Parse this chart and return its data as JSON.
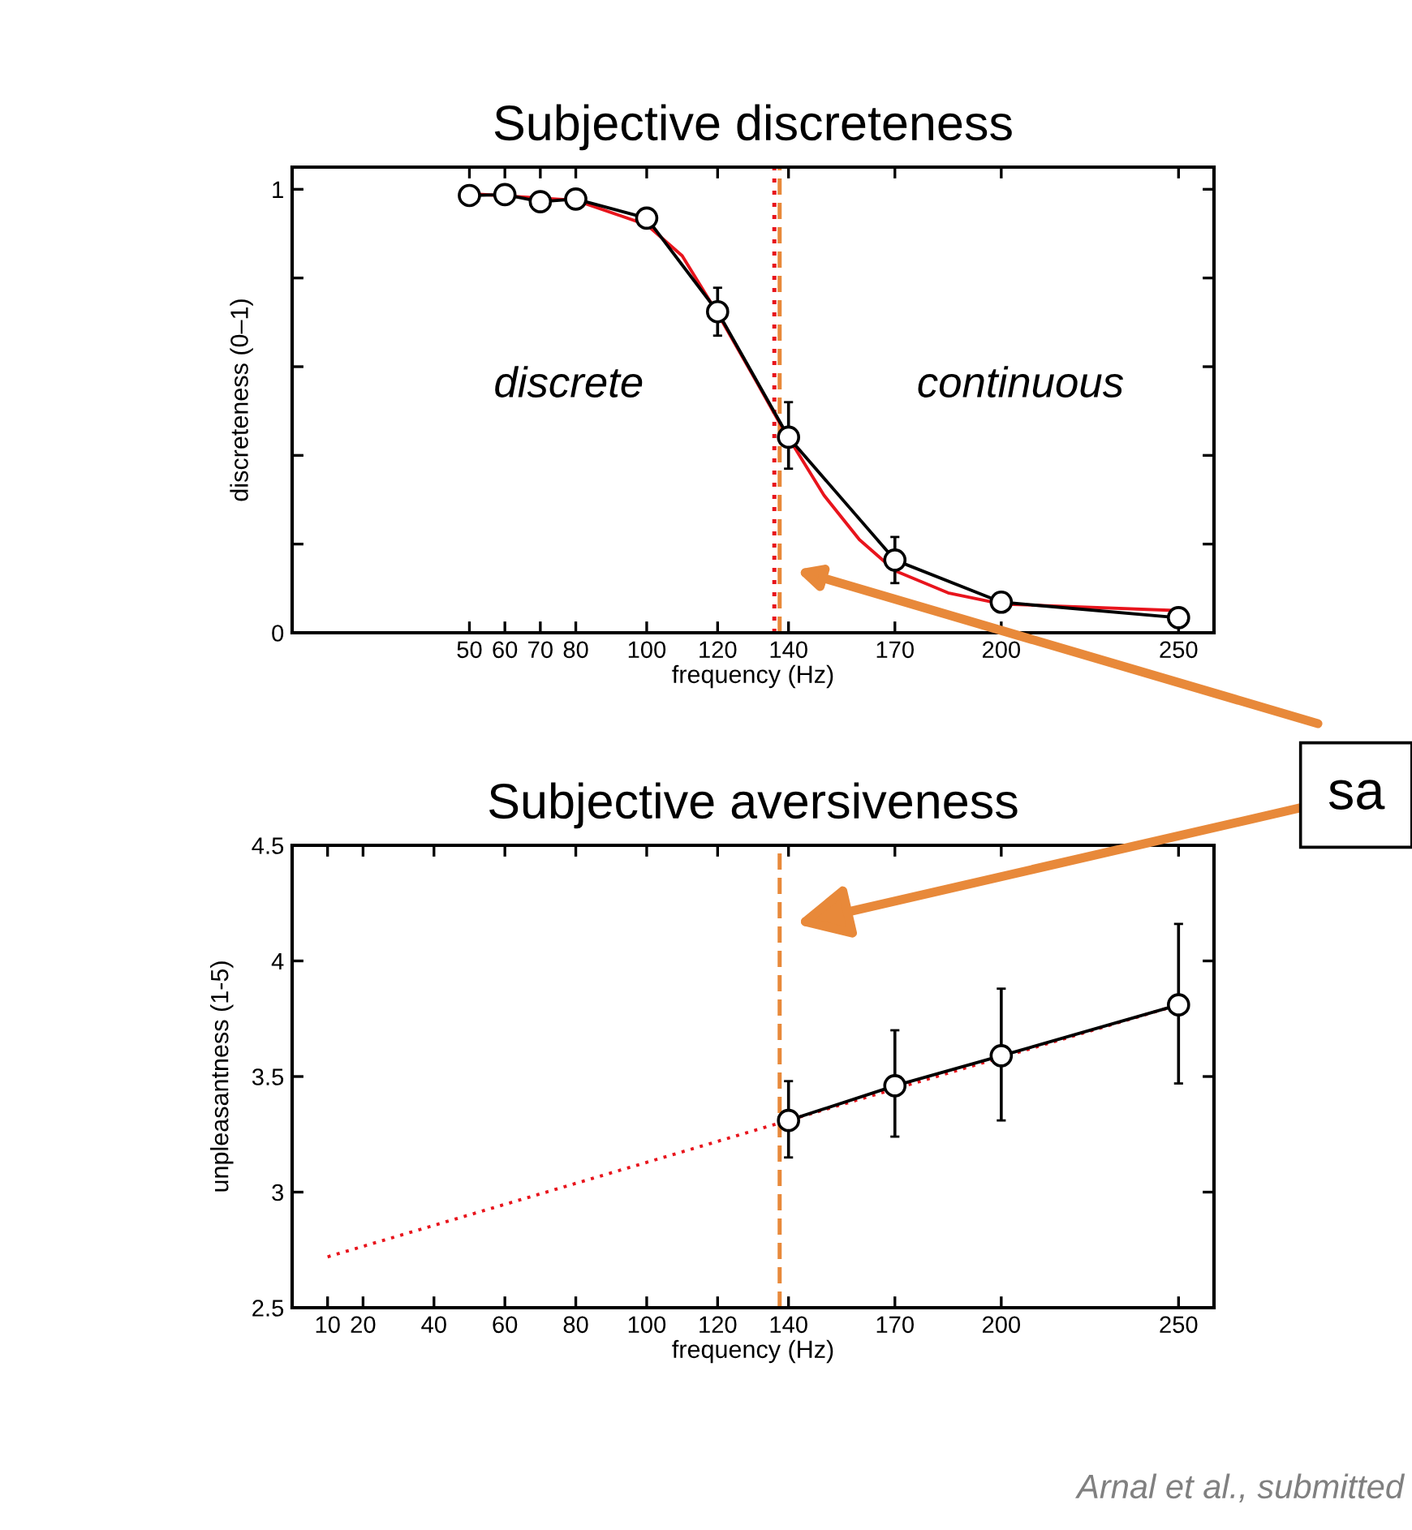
{
  "chart_data": [
    {
      "type": "line",
      "title": "Subjective discreteness",
      "xlabel": "frequency (Hz)",
      "ylabel": "discreteness (0–1)",
      "xlim": [
        0,
        260
      ],
      "xticks": [
        50,
        60,
        70,
        80,
        100,
        120,
        140,
        170,
        200,
        250
      ],
      "ylim": [
        0,
        1.05
      ],
      "yticks": [
        0,
        {
          "value": 0.2,
          "label": null
        },
        {
          "value": 0.4,
          "label": null
        },
        {
          "value": 0.6,
          "label": null
        },
        {
          "value": 0.8,
          "label": null
        },
        1
      ],
      "grid": false,
      "series": [
        {
          "color": "#e8141c",
          "marker": "none",
          "x": [
            50,
            80,
            100,
            110,
            120,
            130,
            137,
            140,
            150,
            160,
            170,
            185,
            200,
            250
          ],
          "values": [
            0.99,
            0.975,
            0.92,
            0.85,
            0.72,
            0.58,
            0.48,
            0.44,
            0.31,
            0.21,
            0.14,
            0.09,
            0.065,
            0.05
          ]
        },
        {
          "color": "#000000",
          "marker": "circle",
          "x": [
            50,
            60,
            70,
            80,
            100,
            120,
            140,
            170,
            200,
            250
          ],
          "values": [
            0.986,
            0.988,
            0.972,
            0.978,
            0.935,
            0.724,
            0.441,
            0.164,
            0.069,
            0.034
          ],
          "errors": [
            null,
            null,
            null,
            null,
            null,
            0.054,
            [
              0.37,
              0.52
            ],
            0.052,
            0.02,
            null
          ]
        }
      ],
      "ref_lines": [
        {
          "axis": "x",
          "value": 136,
          "color": "#e8141c",
          "line_style": "dotted"
        },
        {
          "axis": "x",
          "value": 137.5,
          "color": "#e8893a",
          "line_style": "dashed"
        }
      ],
      "annotations": [
        "discrete",
        "continuous"
      ]
    },
    {
      "type": "line",
      "title": "Subjective aversiveness",
      "xlabel": "frequency (Hz)",
      "ylabel": "unpleasantness (1-5)",
      "xlim": [
        0,
        260
      ],
      "xticks": [
        10,
        20,
        40,
        60,
        80,
        100,
        120,
        140,
        170,
        200,
        250
      ],
      "ylim": [
        2.5,
        4.5
      ],
      "yticks": [
        2.5,
        3,
        3.5,
        4,
        4.5
      ],
      "grid": false,
      "series": [
        {
          "color": "#e8141c",
          "marker": "none",
          "line_style": "dotted",
          "x": [
            10,
            250
          ],
          "values": [
            2.72,
            3.81
          ]
        },
        {
          "color": "#000000",
          "marker": "circle",
          "x": [
            140,
            170,
            200,
            250
          ],
          "values": [
            3.31,
            3.46,
            3.59,
            3.81
          ],
          "errors": [
            [
              3.15,
              3.48
            ],
            [
              3.24,
              3.7
            ],
            [
              3.31,
              3.88
            ],
            [
              3.47,
              4.16
            ]
          ]
        }
      ],
      "ref_lines": [
        {
          "axis": "x",
          "value": 137.5,
          "color": "#e8893a",
          "line_style": "dashed"
        }
      ],
      "annotations": [
        "sa",
        "Arnal et al., submitted"
      ]
    }
  ]
}
